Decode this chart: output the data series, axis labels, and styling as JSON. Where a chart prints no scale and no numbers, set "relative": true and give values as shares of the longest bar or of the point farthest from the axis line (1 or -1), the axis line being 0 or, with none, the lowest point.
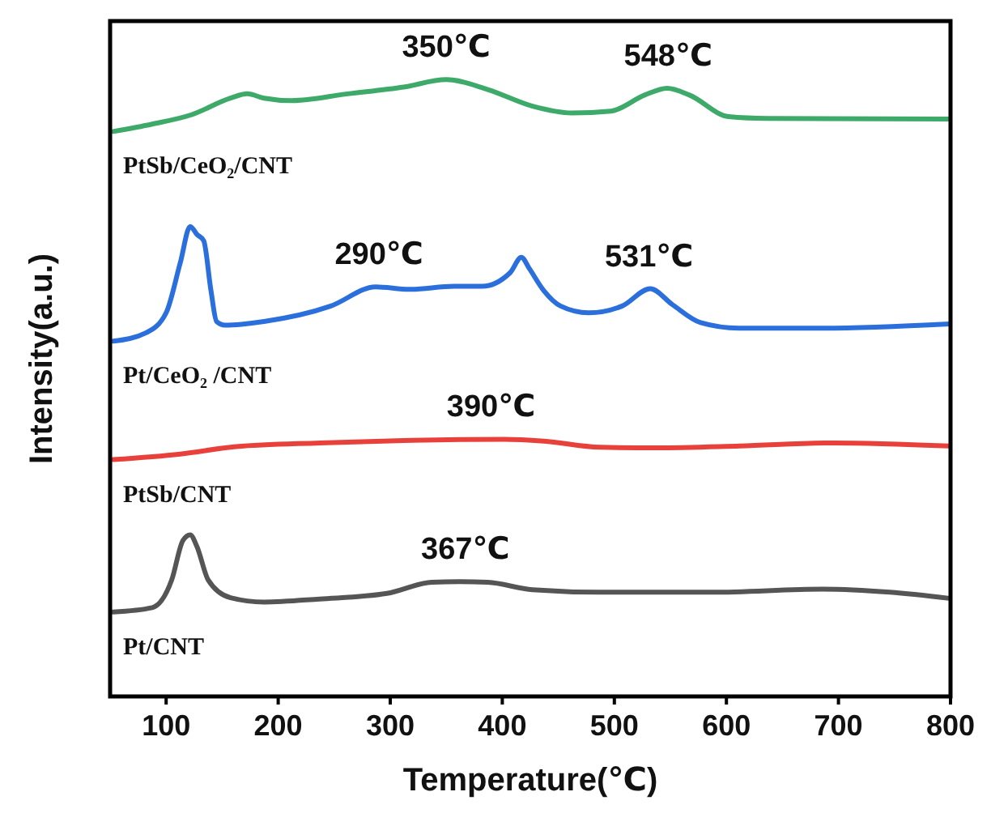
{
  "chart_data": {
    "type": "line",
    "relative": true,
    "xlabel": "Temperature(℃)",
    "ylabel": "Intensity(a.u.)",
    "xlim": [
      50,
      800
    ],
    "xticks": [
      100,
      200,
      300,
      400,
      500,
      600,
      700,
      800
    ],
    "grid": false,
    "marker": "none",
    "line_style": "solid",
    "series": [
      {
        "name": "PtSb/CeO₂/CNT",
        "color": "#3daa6a",
        "x": [
          52.7,
          87.6,
          122.5,
          157.5,
          172.4,
          187.4,
          212,
          262,
          312,
          350,
          387,
          427,
          462,
          497,
          527,
          547,
          567,
          602,
          637,
          799
        ],
        "values": [
          0.916,
          0.928,
          0.943,
          0.97,
          0.977,
          0.97,
          0.966,
          0.977,
          0.988,
          1.0,
          0.984,
          0.957,
          0.946,
          0.949,
          0.975,
          0.986,
          0.975,
          0.94,
          0.937,
          0.936
        ]
      },
      {
        "name": "Pt/CeO₂ /CNT",
        "color": "#2a6fdb",
        "x": [
          52.7,
          82.6,
          100,
          112.6,
          121.5,
          127.5,
          133.5,
          140,
          145,
          152.5,
          187.4,
          247,
          287,
          317,
          357,
          382,
          407,
          417,
          424,
          437,
          452,
          477,
          507,
          532,
          552,
          577,
          611,
          686,
          799
        ],
        "values": [
          0.576,
          0.59,
          0.622,
          0.703,
          0.762,
          0.749,
          0.739,
          0.658,
          0.608,
          0.602,
          0.608,
          0.633,
          0.664,
          0.66,
          0.665,
          0.665,
          0.687,
          0.712,
          0.694,
          0.658,
          0.633,
          0.622,
          0.633,
          0.661,
          0.635,
          0.606,
          0.597,
          0.597,
          0.604
        ]
      },
      {
        "name": "PtSb/CNT",
        "color": "#e8413c",
        "x": [
          52.7,
          112.6,
          162.5,
          237.3,
          312,
          402,
          437,
          487,
          537,
          611.7,
          696,
          799
        ],
        "values": [
          0.384,
          0.393,
          0.405,
          0.411,
          0.415,
          0.417,
          0.414,
          0.404,
          0.403,
          0.406,
          0.411,
          0.406
        ]
      },
      {
        "name": "Pt/CNT",
        "color": "#555555",
        "x": [
          52.7,
          87.6,
          105,
          115,
          121.5,
          127.5,
          137.5,
          157.5,
          187.4,
          237,
          297,
          337,
          362,
          387,
          427,
          487,
          587,
          686,
          746,
          799
        ],
        "values": [
          0.137,
          0.144,
          0.189,
          0.253,
          0.262,
          0.243,
          0.189,
          0.16,
          0.153,
          0.158,
          0.167,
          0.185,
          0.186,
          0.185,
          0.173,
          0.169,
          0.169,
          0.174,
          0.169,
          0.159
        ]
      }
    ],
    "annotations": [
      {
        "text": "350℃",
        "x": 350,
        "y": 1.0
      },
      {
        "text": "548℃",
        "x": 548,
        "y": 0.986
      },
      {
        "text": "290℃",
        "x": 290,
        "y": 0.664
      },
      {
        "text": "531℃",
        "x": 531,
        "y": 0.661
      },
      {
        "text": "390℃",
        "x": 390,
        "y": 0.417
      },
      {
        "text": "367℃",
        "x": 367,
        "y": 0.186
      }
    ]
  }
}
